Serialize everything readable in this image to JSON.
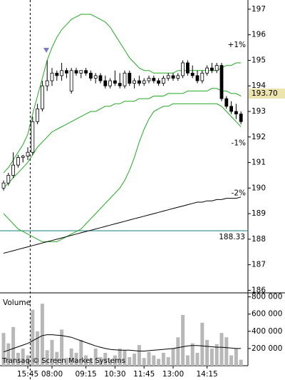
{
  "chart_data": [
    {
      "type": "candlestick",
      "categories": [
        null,
        null,
        null,
        null,
        null,
        "15:45",
        null,
        null,
        null,
        null,
        "08:00",
        null,
        null,
        null,
        null,
        null,
        null,
        "09:15",
        null,
        null,
        null,
        null,
        null,
        "10:30",
        null,
        null,
        null,
        null,
        null,
        "11:45",
        null,
        null,
        null,
        null,
        null,
        "13:00",
        null,
        null,
        null,
        null,
        null,
        null,
        "14:15",
        null,
        null,
        null,
        null,
        null,
        null,
        null
      ],
      "open": [
        190.0,
        190.2,
        190.5,
        190.9,
        191.2,
        191.25,
        191.4,
        192.6,
        193.1,
        194.0,
        194.2,
        194.5,
        194.4,
        194.6,
        193.8,
        194.6,
        194.5,
        194.6,
        194.5,
        194.3,
        194.4,
        194.2,
        194.0,
        194.2,
        194.1,
        194.0,
        194.5,
        194.1,
        194.2,
        194.1,
        194.2,
        194.3,
        194.2,
        194.1,
        194.3,
        194.4,
        194.3,
        194.4,
        194.9,
        194.5,
        194.4,
        194.2,
        194.5,
        194.7,
        194.6,
        194.8,
        193.5,
        193.2,
        193.0,
        192.9
      ],
      "high": [
        190.3,
        190.6,
        191.4,
        191.3,
        191.3,
        191.6,
        192.8,
        193.3,
        194.2,
        195.0,
        194.7,
        194.6,
        194.9,
        194.7,
        194.7,
        194.7,
        194.6,
        194.7,
        194.6,
        194.5,
        194.5,
        194.4,
        194.3,
        194.6,
        194.5,
        194.6,
        194.6,
        194.3,
        194.4,
        194.3,
        194.4,
        194.4,
        194.3,
        194.4,
        194.5,
        194.5,
        194.5,
        195.0,
        195.0,
        194.8,
        194.6,
        194.6,
        194.8,
        194.9,
        194.9,
        194.9,
        193.6,
        193.4,
        193.3,
        193.0
      ],
      "low": [
        189.9,
        190.1,
        190.4,
        190.8,
        191.0,
        191.1,
        191.3,
        192.5,
        193.0,
        193.8,
        194.0,
        194.2,
        194.2,
        194.3,
        193.7,
        194.4,
        194.3,
        194.4,
        194.2,
        194.1,
        194.1,
        193.9,
        193.9,
        194.0,
        193.9,
        193.9,
        194.0,
        193.9,
        194.0,
        194.0,
        194.1,
        194.1,
        194.0,
        194.0,
        194.2,
        194.2,
        194.2,
        194.3,
        194.4,
        194.3,
        194.1,
        194.1,
        194.4,
        194.5,
        194.5,
        193.4,
        193.1,
        192.9,
        192.7,
        192.5
      ],
      "close": [
        190.2,
        190.5,
        190.9,
        191.2,
        191.25,
        191.4,
        192.6,
        193.1,
        194.0,
        194.2,
        194.5,
        194.4,
        194.6,
        194.5,
        194.6,
        194.5,
        194.6,
        194.5,
        194.3,
        194.4,
        194.2,
        194.0,
        194.2,
        194.1,
        194.0,
        194.5,
        194.1,
        194.2,
        194.1,
        194.2,
        194.3,
        194.2,
        194.1,
        194.3,
        194.4,
        194.3,
        194.4,
        194.9,
        194.5,
        194.4,
        194.2,
        194.5,
        194.7,
        194.6,
        194.8,
        193.5,
        193.2,
        193.0,
        192.9,
        192.6
      ],
      "up_color": "#ffffff",
      "down_color": "#000000",
      "lines": [
        {
          "color": "#22aa22",
          "values": [
            190.6,
            190.8,
            191.1,
            191.4,
            191.7,
            192.1,
            192.9,
            193.6,
            194.3,
            195.0,
            195.5,
            195.9,
            196.2,
            196.4,
            196.6,
            196.7,
            196.8,
            196.8,
            196.8,
            196.7,
            196.6,
            196.5,
            196.3,
            196.0,
            195.7,
            195.4,
            195.1,
            194.9,
            194.7,
            194.6,
            194.6,
            194.5,
            194.5,
            194.5,
            194.5,
            194.5,
            194.6,
            194.6,
            194.6,
            194.6,
            194.6,
            194.6,
            194.6,
            194.6,
            194.6,
            194.7,
            194.8,
            194.8,
            194.9,
            194.9
          ]
        },
        {
          "color": "#22aa22",
          "values": [
            190.0,
            190.2,
            190.4,
            190.6,
            190.8,
            191.0,
            191.3,
            191.6,
            191.8,
            192.0,
            192.2,
            192.3,
            192.4,
            192.5,
            192.6,
            192.7,
            192.8,
            192.9,
            193.0,
            193.0,
            193.1,
            193.2,
            193.2,
            193.3,
            193.3,
            193.4,
            193.4,
            193.4,
            193.5,
            193.5,
            193.5,
            193.6,
            193.6,
            193.6,
            193.7,
            193.7,
            193.7,
            193.7,
            193.8,
            193.8,
            193.8,
            193.8,
            193.8,
            193.9,
            193.9,
            193.8,
            193.8,
            193.7,
            193.7,
            193.6
          ]
        },
        {
          "color": "#22aa22",
          "values": [
            189.0,
            188.8,
            188.6,
            188.4,
            188.3,
            188.2,
            188.1,
            188.0,
            187.9,
            187.9,
            187.9,
            187.9,
            188.0,
            188.1,
            188.2,
            188.3,
            188.4,
            188.6,
            188.8,
            189.0,
            189.2,
            189.4,
            189.6,
            189.8,
            190.0,
            190.3,
            190.7,
            191.2,
            191.8,
            192.3,
            192.7,
            193.0,
            193.1,
            193.2,
            193.2,
            193.3,
            193.3,
            193.3,
            193.3,
            193.3,
            193.3,
            193.3,
            193.3,
            193.3,
            193.3,
            193.2,
            193.0,
            192.8,
            192.6,
            192.4
          ]
        },
        {
          "color": "#000000",
          "values": [
            187.45,
            187.5,
            187.55,
            187.6,
            187.65,
            187.7,
            187.75,
            187.8,
            187.85,
            187.9,
            187.95,
            188.0,
            188.05,
            188.1,
            188.15,
            188.2,
            188.25,
            188.3,
            188.35,
            188.4,
            188.45,
            188.5,
            188.55,
            188.6,
            188.65,
            188.7,
            188.75,
            188.8,
            188.85,
            188.9,
            188.95,
            189.0,
            189.05,
            189.1,
            189.15,
            189.2,
            189.25,
            189.3,
            189.35,
            189.4,
            189.45,
            189.45,
            189.5,
            189.5,
            189.55,
            189.55,
            189.6,
            189.6,
            189.6,
            189.65
          ]
        }
      ],
      "level": {
        "value": 188.33,
        "label": "188.33",
        "color": "#2e8b8b"
      },
      "last_price": {
        "value": 193.7,
        "label": "193.70",
        "background": "#ece3ad"
      },
      "annotations": [
        {
          "text": "+1%",
          "y": 195.6,
          "color": "#2a9a2a"
        },
        {
          "text": "-1%",
          "y": 191.75,
          "color": "#cc3333"
        },
        {
          "text": "-2%",
          "y": 189.8,
          "color": "#cc3333"
        }
      ],
      "ylim": [
        185.9,
        197.36
      ],
      "yticks": [
        186,
        187,
        188,
        189,
        190,
        191,
        192,
        193,
        194,
        195,
        196,
        197
      ]
    },
    {
      "type": "bar",
      "title": "Volume",
      "footnote": "Transaq © Screen Market Systems",
      "values": [
        380000,
        260000,
        450000,
        150000,
        200000,
        120000,
        650000,
        400000,
        720000,
        180000,
        300000,
        160000,
        420000,
        90000,
        200000,
        150000,
        300000,
        120000,
        80000,
        200000,
        100000,
        150000,
        70000,
        120000,
        200000,
        180000,
        100000,
        140000,
        240000,
        90000,
        160000,
        120000,
        80000,
        150000,
        100000,
        200000,
        330000,
        590000,
        120000,
        260000,
        150000,
        500000,
        300000,
        200000,
        250000,
        380000,
        330000,
        120000,
        200000,
        70000
      ],
      "color": "#b8b8b8",
      "line": {
        "color": "#000000",
        "values": [
          160000,
          180000,
          200000,
          220000,
          240000,
          260000,
          290000,
          320000,
          350000,
          360000,
          360000,
          355000,
          350000,
          340000,
          330000,
          310000,
          290000,
          270000,
          250000,
          230000,
          215000,
          200000,
          190000,
          185000,
          180000,
          180000,
          180000,
          175000,
          170000,
          170000,
          175000,
          180000,
          185000,
          190000,
          195000,
          200000,
          210000,
          220000,
          230000,
          235000,
          235000,
          230000,
          225000,
          220000,
          215000,
          215000,
          210000,
          205000,
          200000,
          200000
        ]
      },
      "ylim": [
        0,
        830000
      ],
      "yticks": [
        {
          "value": 200000,
          "label": "200 000"
        },
        {
          "value": 400000,
          "label": "400 000"
        },
        {
          "value": 600000,
          "label": "600 000"
        },
        {
          "value": 800000,
          "label": "800 000"
        }
      ]
    }
  ]
}
